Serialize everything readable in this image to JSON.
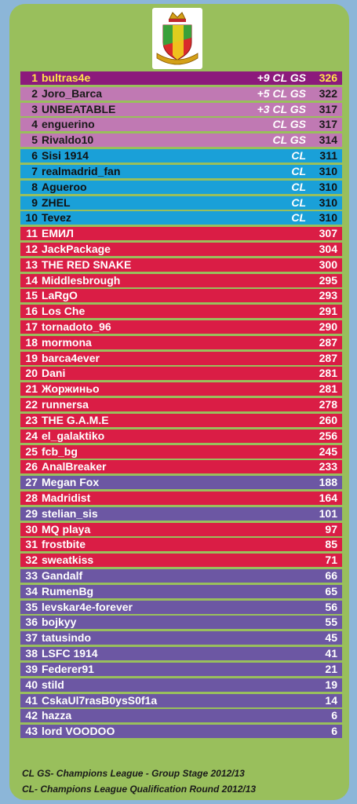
{
  "rows": [
    {
      "rank": "1",
      "nick": "bultras4e",
      "qual": "+9 CL GS",
      "pts": "326",
      "color": "top"
    },
    {
      "rank": "2",
      "nick": "Joro_Barca",
      "qual": "+5 CL GS",
      "pts": "322",
      "color": "gs"
    },
    {
      "rank": "3",
      "nick": "UNBEATABLE",
      "qual": "+3 CL GS",
      "pts": "317",
      "color": "gs"
    },
    {
      "rank": "4",
      "nick": "enguerino",
      "qual": "CL GS",
      "pts": "317",
      "color": "gs"
    },
    {
      "rank": "5",
      "nick": "Rivaldo10",
      "qual": "CL GS",
      "pts": "314",
      "color": "gs"
    },
    {
      "rank": "6",
      "nick": "Sisi 1914",
      "qual": "CL",
      "pts": "311",
      "color": "cl"
    },
    {
      "rank": "7",
      "nick": "realmadrid_fan",
      "qual": "CL",
      "pts": "310",
      "color": "cl"
    },
    {
      "rank": "8",
      "nick": "Agueroo",
      "qual": "CL",
      "pts": "310",
      "color": "cl"
    },
    {
      "rank": "9",
      "nick": "ZHEL",
      "qual": "CL",
      "pts": "310",
      "color": "cl"
    },
    {
      "rank": "10",
      "nick": "Tevez",
      "qual": "CL",
      "pts": "310",
      "color": "cl"
    },
    {
      "rank": "11",
      "nick": "ЕМИЛ",
      "qual": "",
      "pts": "307",
      "color": "red"
    },
    {
      "rank": "12",
      "nick": "JackPackage",
      "qual": "",
      "pts": "304",
      "color": "red"
    },
    {
      "rank": "13",
      "nick": " THE RED SNAKE",
      "qual": "",
      "pts": "300",
      "color": "red"
    },
    {
      "rank": "14",
      "nick": " Middlesbrough",
      "qual": "",
      "pts": "295",
      "color": "red"
    },
    {
      "rank": "15",
      "nick": "LaRgO",
      "qual": "",
      "pts": "293",
      "color": "red"
    },
    {
      "rank": "16",
      "nick": "Los Che",
      "qual": "",
      "pts": "291",
      "color": "red"
    },
    {
      "rank": "17",
      "nick": "tornadoto_96",
      "qual": "",
      "pts": "290",
      "color": "red"
    },
    {
      "rank": "18",
      "nick": "mormona",
      "qual": "",
      "pts": "287",
      "color": "red"
    },
    {
      "rank": "19",
      "nick": "barca4ever",
      "qual": "",
      "pts": "287",
      "color": "red"
    },
    {
      "rank": "20",
      "nick": "Dani",
      "qual": "",
      "pts": "281",
      "color": "red"
    },
    {
      "rank": "21",
      "nick": "Жоржиньо",
      "qual": "",
      "pts": "281",
      "color": "red"
    },
    {
      "rank": "22",
      "nick": "runnersa",
      "qual": "",
      "pts": "278",
      "color": "red"
    },
    {
      "rank": "23",
      "nick": "THE G.A.M.E",
      "qual": "",
      "pts": "260",
      "color": "red"
    },
    {
      "rank": "24",
      "nick": "el_galaktiko",
      "qual": "",
      "pts": "256",
      "color": "red"
    },
    {
      "rank": "25",
      "nick": "fcb_bg",
      "qual": "",
      "pts": "245",
      "color": "red"
    },
    {
      "rank": "26",
      "nick": "AnalBreaker",
      "qual": "",
      "pts": "233",
      "color": "red"
    },
    {
      "rank": "27",
      "nick": "Megan Fox",
      "qual": "",
      "pts": "188",
      "color": "purple"
    },
    {
      "rank": "28",
      "nick": "Madridist",
      "qual": "",
      "pts": "164",
      "color": "red"
    },
    {
      "rank": "29",
      "nick": "stelian_sis",
      "qual": "",
      "pts": "101",
      "color": "purple"
    },
    {
      "rank": "30",
      "nick": "MQ playa",
      "qual": "",
      "pts": "97",
      "color": "red"
    },
    {
      "rank": "31",
      "nick": "frostbite",
      "qual": "",
      "pts": "85",
      "color": "red"
    },
    {
      "rank": "32",
      "nick": "sweatkiss",
      "qual": "",
      "pts": "71",
      "color": "red"
    },
    {
      "rank": "33",
      "nick": "Gandalf",
      "qual": "",
      "pts": "66",
      "color": "purple"
    },
    {
      "rank": "34",
      "nick": "RumenBg",
      "qual": "",
      "pts": "65",
      "color": "purple"
    },
    {
      "rank": "35",
      "nick": "levskar4e-forever",
      "qual": "",
      "pts": "56",
      "color": "purple"
    },
    {
      "rank": "36",
      "nick": "bojkyy",
      "qual": "",
      "pts": "55",
      "color": "purple"
    },
    {
      "rank": "37",
      "nick": "tatusindo",
      "qual": "",
      "pts": "45",
      "color": "purple"
    },
    {
      "rank": "38",
      "nick": "LSFC 1914",
      "qual": "",
      "pts": "41",
      "color": "purple"
    },
    {
      "rank": "39",
      "nick": "Federer91",
      "qual": "",
      "pts": "21",
      "color": "purple"
    },
    {
      "rank": "40",
      "nick": "stild",
      "qual": "",
      "pts": "19",
      "color": "purple"
    },
    {
      "rank": "41",
      "nick": "CskaUl7rasB0ysS0f1a",
      "qual": "",
      "pts": "14",
      "color": "purple"
    },
    {
      "rank": "42",
      "nick": "hazza",
      "qual": "",
      "pts": "6",
      "color": "purple"
    },
    {
      "rank": "43",
      "nick": "lord VOODOO",
      "qual": "",
      "pts": "6",
      "color": "purple"
    }
  ],
  "legend": {
    "gs": "CL GS- Champions League - Group Stage 2012/13",
    "cl": "CL- Champions League Qualification Round 2012/13"
  },
  "colors": {
    "background": "#8cb6d8",
    "panel": "#99bf5c",
    "top": "#8c1a7c",
    "gs": "#c079b3",
    "cl": "#1aa0d8",
    "red": "#da1d45",
    "purple": "#6c57a3"
  },
  "logo": {
    "icon": "club-crest-icon"
  }
}
